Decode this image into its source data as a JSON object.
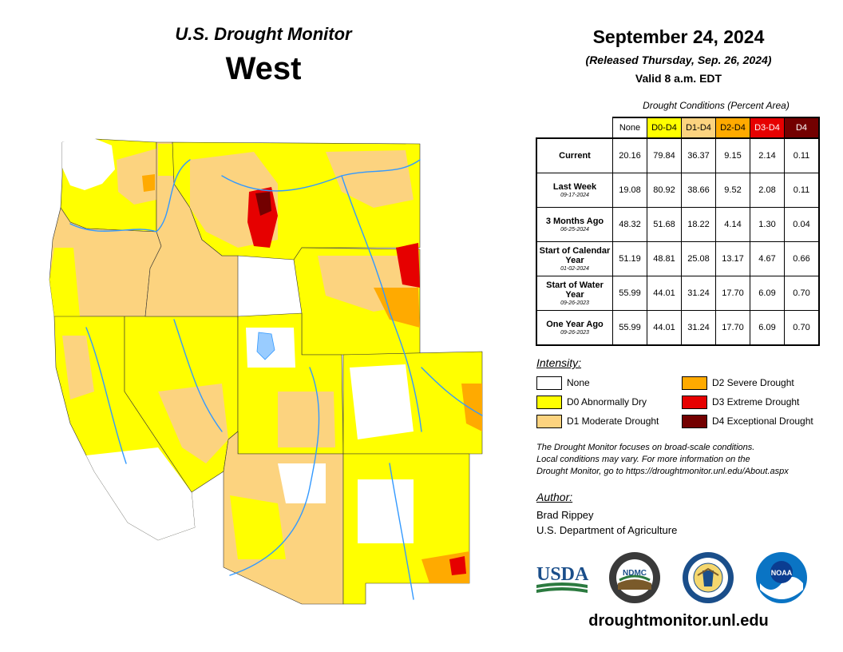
{
  "header": {
    "subtitle": "U.S. Drought Monitor",
    "region": "West",
    "date": "September 24, 2024",
    "released": "(Released Thursday, Sep. 26, 2024)",
    "valid": "Valid 8 a.m. EDT"
  },
  "table": {
    "caption": "Drought Conditions (Percent Area)",
    "columns": [
      {
        "label": "None",
        "color": "#ffffff",
        "text_color": "#000000"
      },
      {
        "label": "D0-D4",
        "color": "#ffff00",
        "text_color": "#000000"
      },
      {
        "label": "D1-D4",
        "color": "#fcd37f",
        "text_color": "#000000"
      },
      {
        "label": "D2-D4",
        "color": "#ffaa00",
        "text_color": "#000000"
      },
      {
        "label": "D3-D4",
        "color": "#e60000",
        "text_color": "#ffffff"
      },
      {
        "label": "D4",
        "color": "#730000",
        "text_color": "#ffffff"
      }
    ],
    "rows": [
      {
        "label": "Current",
        "date": "",
        "values": [
          "20.16",
          "79.84",
          "36.37",
          "9.15",
          "2.14",
          "0.11"
        ]
      },
      {
        "label": "Last Week",
        "date": "09-17-2024",
        "values": [
          "19.08",
          "80.92",
          "38.66",
          "9.52",
          "2.08",
          "0.11"
        ]
      },
      {
        "label": "3 Months Ago",
        "date": "06-25-2024",
        "values": [
          "48.32",
          "51.68",
          "18.22",
          "4.14",
          "1.30",
          "0.04"
        ]
      },
      {
        "label": "Start of Calendar Year",
        "date": "01-02-2024",
        "values": [
          "51.19",
          "48.81",
          "25.08",
          "13.17",
          "4.67",
          "0.66"
        ]
      },
      {
        "label": "Start of Water Year",
        "date": "09-26-2023",
        "values": [
          "55.99",
          "44.01",
          "31.24",
          "17.70",
          "6.09",
          "0.70"
        ]
      },
      {
        "label": "One Year Ago",
        "date": "09-26-2023",
        "values": [
          "55.99",
          "44.01",
          "31.24",
          "17.70",
          "6.09",
          "0.70"
        ]
      }
    ]
  },
  "legend": {
    "title": "Intensity:",
    "items": [
      {
        "label": "None",
        "color": "#ffffff"
      },
      {
        "label": "D0 Abnormally Dry",
        "color": "#ffff00"
      },
      {
        "label": "D1 Moderate Drought",
        "color": "#fcd37f"
      },
      {
        "label": "D2 Severe Drought",
        "color": "#ffaa00"
      },
      {
        "label": "D3 Extreme Drought",
        "color": "#e60000"
      },
      {
        "label": "D4 Exceptional Drought",
        "color": "#730000"
      }
    ]
  },
  "note": {
    "line1": "The Drought Monitor focuses on broad-scale conditions.",
    "line2": "Local conditions may vary. For more information on the",
    "line3": "Drought Monitor, go to https://droughtmonitor.unl.edu/About.aspx"
  },
  "author": {
    "title": "Author:",
    "name": "Brad Rippey",
    "org": "U.S. Department of Agriculture"
  },
  "logos": {
    "usda": "USDA",
    "ndmc": "NDMC",
    "noaa": "NOAA"
  },
  "website": "droughtmonitor.unl.edu"
}
